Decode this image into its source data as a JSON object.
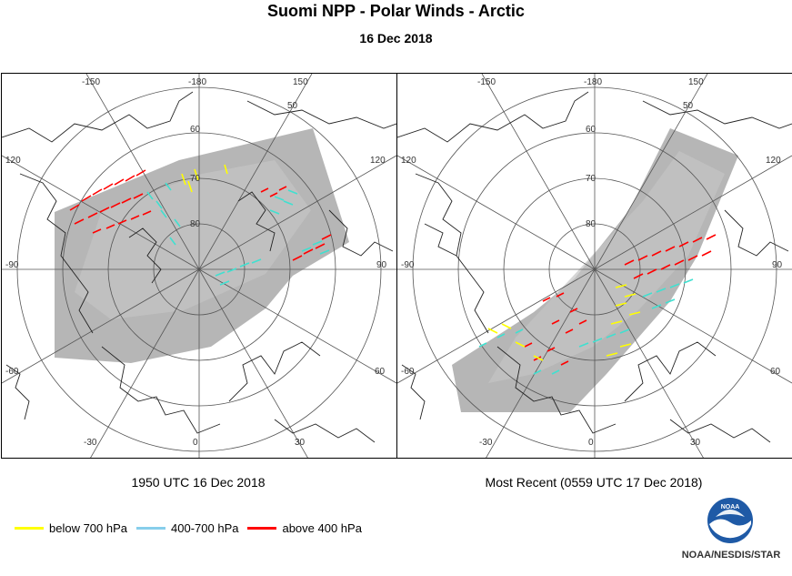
{
  "header": {
    "title": "Suomi NPP - Polar Winds - Arctic",
    "date": "16 Dec 2018"
  },
  "panels": [
    {
      "id": "left",
      "caption": "1950 UTC 16 Dec 2018",
      "grid_labels": {
        "lon_top_left": "-150",
        "lon_top_center": "-180",
        "lon_top_right": "150",
        "lon_left_upper": "120",
        "lon_right_upper": "120",
        "lon_left_mid": "-90",
        "lon_right_mid": "90",
        "lon_left_lower": "-60",
        "lon_right_lower": "60",
        "lon_bottom_left": "-30",
        "lon_bottom_center": "0",
        "lon_bottom_right": "30",
        "lat_50": "50",
        "lat_60": "60",
        "lat_70": "70",
        "lat_80": "80"
      }
    },
    {
      "id": "right",
      "caption": "Most Recent (0559 UTC 17 Dec 2018)",
      "grid_labels": {
        "lon_top_left": "-150",
        "lon_top_center": "-180",
        "lon_top_right": "150",
        "lon_left_upper": "120",
        "lon_right_upper": "120",
        "lon_left_mid": "-90",
        "lon_right_mid": "90",
        "lon_left_lower": "-60",
        "lon_right_lower": "60",
        "lon_bottom_left": "-30",
        "lon_bottom_center": "0",
        "lon_bottom_right": "30",
        "lat_50": "50",
        "lat_60": "60",
        "lat_70": "70",
        "lat_80": "80"
      }
    }
  ],
  "legend": [
    {
      "label": "below 700 hPa",
      "color": "#ffff00"
    },
    {
      "label": "400-700 hPa",
      "color": "#87ceeb"
    },
    {
      "label": "above 400 hPa",
      "color": "#ff0000"
    }
  ],
  "logo": {
    "text": "NOAA",
    "icon": "noaa-logo-icon"
  },
  "credit": "NOAA/NESDIS/STAR"
}
